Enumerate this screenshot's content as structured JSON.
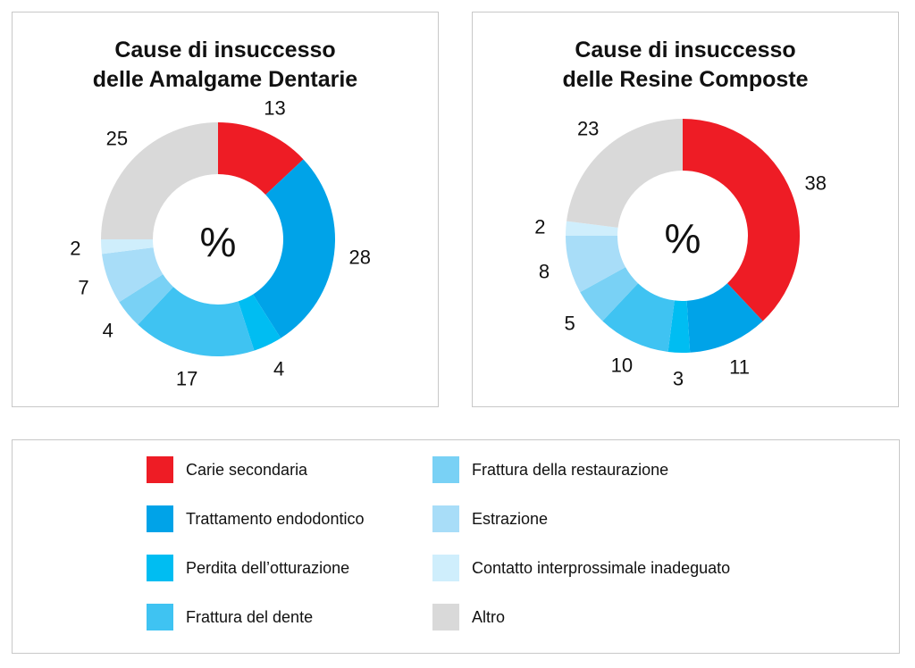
{
  "colors": {
    "carie": "#ee1c25",
    "endo": "#00a3e8",
    "perdita": "#00bdf2",
    "frattura_dente": "#3fc3f2",
    "frattura_rest": "#79d1f5",
    "estrazione": "#a8ddf8",
    "contatto": "#cfeefc",
    "altro": "#d9d9d9"
  },
  "center_symbol": "%",
  "legend": [
    {
      "label": "Carie secondaria",
      "color": "#ee1c25"
    },
    {
      "label": "Trattamento endodontico",
      "color": "#00a3e8"
    },
    {
      "label": "Perdita dell’otturazione",
      "color": "#00bdf2"
    },
    {
      "label": "Frattura del dente",
      "color": "#3fc3f2"
    },
    {
      "label": "Frattura della restaurazione",
      "color": "#79d1f5"
    },
    {
      "label": "Estrazione",
      "color": "#a8ddf8"
    },
    {
      "label": "Contatto interprossimale inadeguato",
      "color": "#cfeefc"
    },
    {
      "label": "Altro",
      "color": "#d9d9d9"
    }
  ],
  "chart_data": [
    {
      "type": "pie",
      "title_line1": "Cause di insuccesso",
      "title_line2": "delle Amalgame Dentarie",
      "categories": [
        "Carie secondaria",
        "Trattamento endodontico",
        "Perdita dell’otturazione",
        "Frattura del dente",
        "Frattura della restaurazione",
        "Estrazione",
        "Contatto interprossimale inadeguato",
        "Altro"
      ],
      "values": [
        13,
        28,
        4,
        17,
        4,
        7,
        2,
        25
      ],
      "unit": "%"
    },
    {
      "type": "pie",
      "title_line1": "Cause di insuccesso",
      "title_line2": "delle Resine Composte",
      "categories": [
        "Carie secondaria",
        "Trattamento endodontico",
        "Perdita dell’otturazione",
        "Frattura del dente",
        "Frattura della restaurazione",
        "Estrazione",
        "Contatto interprossimale inadeguato",
        "Altro"
      ],
      "values": [
        38,
        11,
        3,
        10,
        5,
        8,
        2,
        23
      ],
      "unit": "%"
    }
  ]
}
